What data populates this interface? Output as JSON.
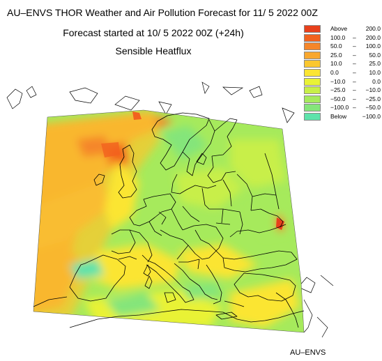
{
  "header": {
    "title": "AU–ENVS THOR Weather and Air Pollution Forecast for 11/ 5 2022  00Z",
    "subtitle": "Forecast started at 10/ 5 2022  00Z (+24h)",
    "field": "Sensible Heatflux"
  },
  "legend": [
    {
      "color": "#e8401c",
      "lo": "Above",
      "hi": "200.0",
      "sep": ""
    },
    {
      "color": "#f2621e",
      "lo": "100.0",
      "hi": "200.0",
      "sep": "–"
    },
    {
      "color": "#f5862a",
      "lo": "50.0",
      "hi": "100.0",
      "sep": "–"
    },
    {
      "color": "#f8a72e",
      "lo": "25.0",
      "hi": "50.0",
      "sep": "–"
    },
    {
      "color": "#fac72f",
      "lo": "10.0",
      "hi": "25.0",
      "sep": "–"
    },
    {
      "color": "#fbe532",
      "lo": "0.0",
      "hi": "10.0",
      "sep": "–"
    },
    {
      "color": "#e9f236",
      "lo": "−10.0",
      "hi": "0.0",
      "sep": "–"
    },
    {
      "color": "#c8ef48",
      "lo": "−25.0",
      "hi": "−10.0",
      "sep": "–"
    },
    {
      "color": "#a6ea5c",
      "lo": "−50.0",
      "hi": "−25.0",
      "sep": "–"
    },
    {
      "color": "#84e57a",
      "lo": "−100.0",
      "hi": "−50.0",
      "sep": "–"
    },
    {
      "color": "#5de3ab",
      "lo": "Below",
      "hi": "−100.0",
      "sep": ""
    }
  ],
  "footer": "AU–ENVS"
}
